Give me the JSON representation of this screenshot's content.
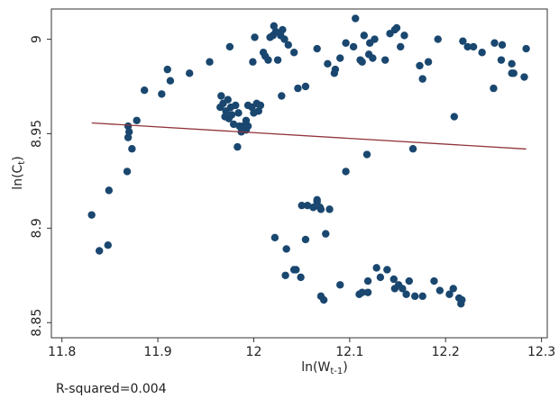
{
  "chart_data": {
    "type": "scatter",
    "x_label": {
      "text": "ln(W",
      "sub": "t-1",
      "end": ")"
    },
    "y_label": {
      "text": "ln(C",
      "sub": "t",
      "end": ")"
    },
    "annotation": "R-squared=0.004",
    "xlim": [
      11.789,
      12.306
    ],
    "xticks": [
      11.8,
      11.9,
      12,
      12.1,
      12.2,
      12.3
    ],
    "ylim": [
      8.842,
      9.016
    ],
    "yticks": [
      8.85,
      8.9,
      8.95,
      9
    ],
    "color": "#1a476f",
    "x": [
      11.831,
      11.839,
      11.848,
      11.849,
      11.868,
      11.869,
      11.869,
      11.87,
      11.873,
      11.878,
      11.886,
      11.904,
      11.91,
      11.913,
      11.933,
      11.954,
      11.966,
      11.965,
      11.968,
      11.971,
      11.97,
      11.973,
      11.976,
      11.977,
      11.974,
      11.981,
      11.984,
      11.985,
      11.979,
      11.987,
      11.989,
      11.992,
      11.992,
      11.994,
      11.994,
      11.998,
      12.0,
      12.003,
      12.005,
      12.007,
      11.975,
      11.983,
      11.999,
      12.001,
      12.01,
      12.012,
      12.015,
      12.017,
      12.02,
      12.021,
      12.023,
      12.025,
      12.028,
      12.03,
      12.032,
      12.036,
      12.042,
      12.046,
      12.054,
      12.066,
      12.077,
      12.084,
      12.085,
      12.09,
      12.096,
      12.104,
      12.106,
      12.111,
      12.113,
      12.115,
      12.12,
      12.121,
      12.124,
      12.126,
      12.137,
      12.142,
      12.147,
      12.149,
      12.153,
      12.157,
      12.173,
      12.176,
      12.182,
      12.192,
      12.218,
      12.223,
      12.229,
      12.238,
      12.25,
      12.251,
      12.259,
      12.258,
      12.269,
      12.269,
      12.271,
      12.282,
      12.284,
      12.029,
      12.096,
      12.118,
      12.166,
      12.209,
      12.022,
      12.034,
      12.033,
      12.042,
      12.044,
      12.049,
      12.054,
      12.05,
      12.056,
      12.062,
      12.066,
      12.069,
      12.066,
      12.07,
      12.075,
      12.079,
      12.07,
      12.073,
      12.09,
      12.119,
      12.113,
      12.119,
      12.11,
      12.128,
      12.132,
      12.139,
      12.146,
      12.147,
      12.151,
      12.155,
      12.159,
      12.162,
      12.168,
      12.176,
      12.188,
      12.194,
      12.204,
      12.208,
      12.214,
      12.216,
      12.217
    ],
    "values": [
      8.907,
      8.888,
      8.891,
      8.92,
      8.93,
      8.948,
      8.954,
      8.951,
      8.942,
      8.957,
      8.973,
      8.971,
      8.984,
      8.978,
      8.982,
      8.988,
      8.97,
      8.964,
      8.966,
      8.962,
      8.959,
      8.968,
      8.964,
      8.96,
      8.958,
      8.965,
      8.961,
      8.954,
      8.955,
      8.951,
      8.954,
      8.952,
      8.957,
      8.954,
      8.965,
      8.964,
      8.961,
      8.966,
      8.962,
      8.965,
      8.996,
      8.943,
      8.988,
      9.001,
      8.993,
      8.991,
      8.989,
      9.001,
      9.002,
      9.007,
      9.004,
      8.989,
      9.002,
      9.005,
      9.0,
      8.997,
      8.993,
      8.974,
      8.975,
      8.995,
      8.987,
      8.982,
      8.984,
      8.99,
      8.998,
      8.996,
      9.011,
      8.989,
      8.988,
      9.002,
      8.992,
      8.998,
      8.99,
      9.0,
      8.989,
      9.003,
      9.005,
      9.006,
      8.996,
      9.002,
      8.986,
      8.979,
      8.988,
      9.0,
      8.999,
      8.996,
      8.996,
      8.993,
      8.974,
      8.998,
      8.997,
      8.989,
      8.987,
      8.982,
      8.982,
      8.98,
      8.995,
      8.97,
      8.93,
      8.939,
      8.942,
      8.959,
      8.895,
      8.889,
      8.875,
      8.878,
      8.878,
      8.874,
      8.894,
      8.912,
      8.912,
      8.911,
      8.914,
      8.911,
      8.915,
      8.91,
      8.897,
      8.91,
      8.864,
      8.862,
      8.87,
      8.872,
      8.866,
      8.866,
      8.865,
      8.879,
      8.874,
      8.878,
      8.873,
      8.868,
      8.87,
      8.868,
      8.865,
      8.872,
      8.864,
      8.864,
      8.872,
      8.867,
      8.865,
      8.868,
      8.863,
      8.86,
      8.862
    ],
    "fit": {
      "x": [
        11.831,
        12.284
      ],
      "values": [
        8.9557,
        8.9419
      ],
      "color": "#90353b"
    }
  }
}
